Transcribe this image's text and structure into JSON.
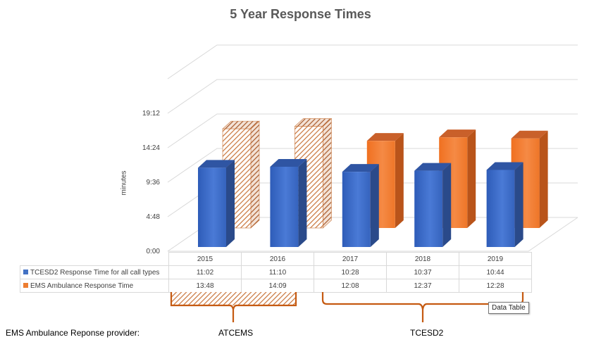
{
  "chart_data": {
    "type": "bar",
    "title": "5 Year Response Times",
    "ylabel": "minutes",
    "yticks": [
      "0:00",
      "4:48",
      "9:36",
      "14:24",
      "19:12"
    ],
    "ylim_minutes": [
      0,
      24
    ],
    "categories": [
      "2015",
      "2016",
      "2017",
      "2018",
      "2019"
    ],
    "series": [
      {
        "name": "TCESD2 Response Time for all call types",
        "color": "#4472C4",
        "labels": [
          "11:02",
          "11:10",
          "10:28",
          "10:37",
          "10:44"
        ],
        "values": [
          11.03,
          11.17,
          10.47,
          10.62,
          10.73
        ]
      },
      {
        "name": "EMS Ambulance Response Time",
        "color": "#ED7D31",
        "labels": [
          "13:48",
          "14:09",
          "12:08",
          "12:37",
          "12:28"
        ],
        "values": [
          13.8,
          14.15,
          12.13,
          12.62,
          12.47
        ],
        "hatched_categories": [
          "2015",
          "2016"
        ]
      }
    ],
    "grid": true,
    "legend": "data table"
  },
  "tooltip": "Data Table",
  "provider_label": "EMS Ambulance Reponse provider:",
  "groups": [
    {
      "label": "ATCEMS",
      "categories": [
        "2015",
        "2016"
      ]
    },
    {
      "label": "TCESD2",
      "categories": [
        "2017",
        "2018",
        "2019"
      ]
    }
  ]
}
